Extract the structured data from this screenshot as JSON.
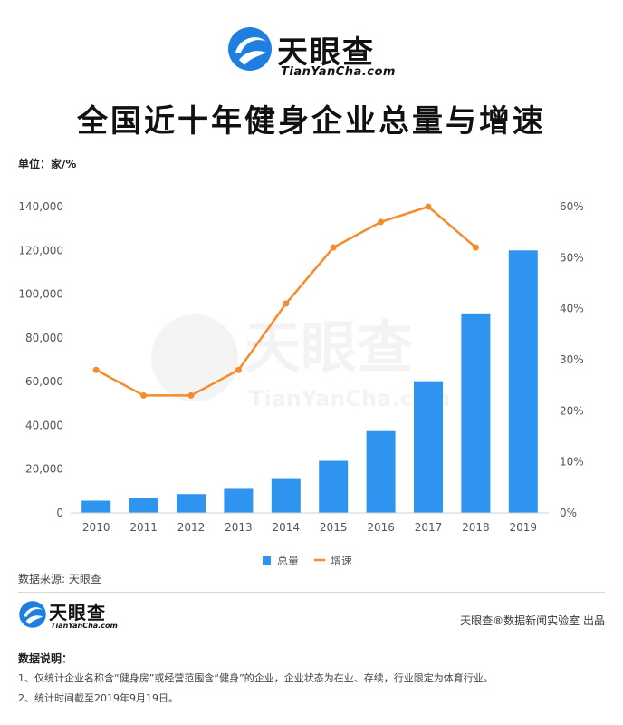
{
  "brand": {
    "name": "天眼查",
    "domain": "TianYanCha.com"
  },
  "title": "全国近十年健身企业总量与增速",
  "unit_label": "单位：家/%",
  "chart_data": {
    "type": "bar",
    "categories": [
      "2010",
      "2011",
      "2012",
      "2013",
      "2014",
      "2015",
      "2016",
      "2017",
      "2018",
      "2019"
    ],
    "series": [
      {
        "name": "总量",
        "type": "bar",
        "axis": "left",
        "color": "#2f93f0",
        "values": [
          5600,
          7000,
          8600,
          11000,
          15500,
          23800,
          37400,
          60200,
          91200,
          120000
        ]
      },
      {
        "name": "增速",
        "type": "line",
        "axis": "right",
        "color": "#f58b2a",
        "values": [
          28,
          23,
          23,
          28,
          41,
          52,
          57,
          60,
          52,
          null
        ]
      }
    ],
    "left_axis": {
      "min": 0,
      "max": 140000,
      "ticks": [
        "0",
        "20,000",
        "40,000",
        "60,000",
        "80,000",
        "100,000",
        "120,000",
        "140,000"
      ]
    },
    "right_axis": {
      "min": 0,
      "max": 60,
      "ticks": [
        "0%",
        "10%",
        "20%",
        "30%",
        "40%",
        "50%",
        "60%"
      ]
    },
    "legend": {
      "position": "bottom-center",
      "items": [
        "总量",
        "增速"
      ]
    },
    "grid": false
  },
  "source": "数据来源: 天眼查",
  "credit": "天眼查®数据新闻实验室 出品",
  "notes": {
    "title": "数据说明：",
    "items": [
      "1、仅统计企业名称含“健身房”或经营范围含“健身”的企业，企业状态为在业、存续，行业限定为体育行业。",
      "2、统计时间截至2019年9月19日。"
    ]
  }
}
